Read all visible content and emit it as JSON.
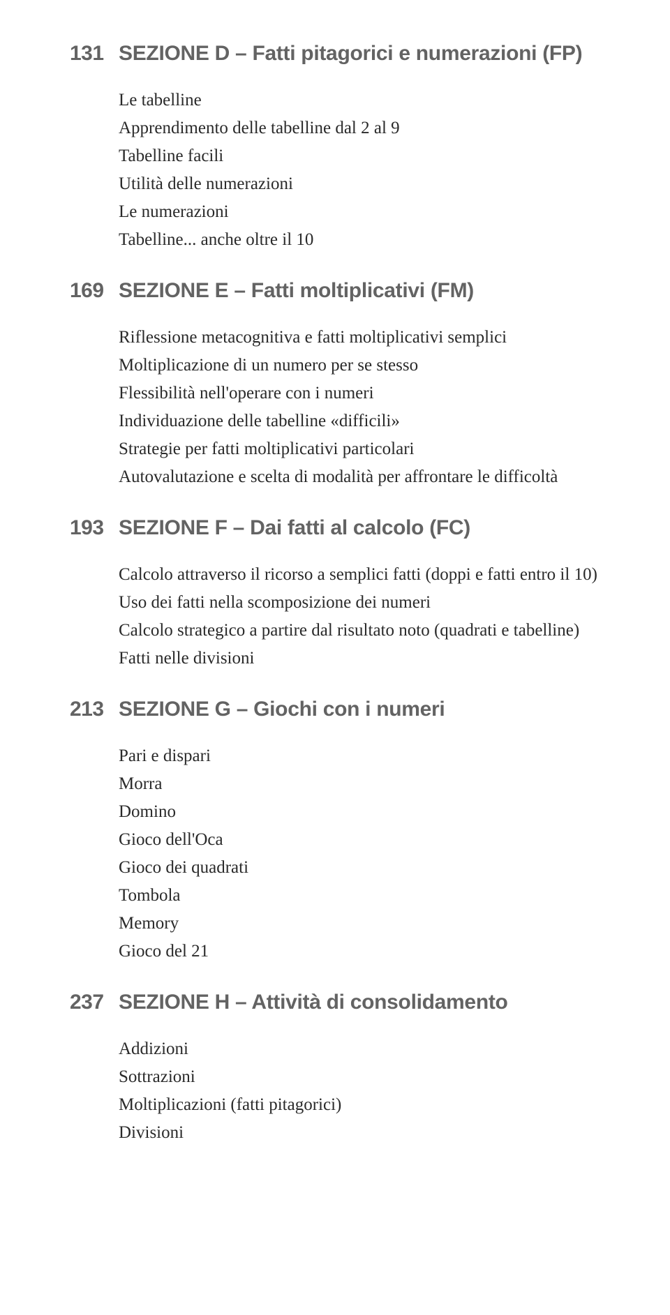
{
  "sections": [
    {
      "page": "131",
      "title": "SEZIONE D – Fatti pitagorici e numerazioni (FP)",
      "items": [
        "Le tabelline",
        "Apprendimento delle tabelline dal 2 al 9",
        "Tabelline facili",
        "Utilità delle numerazioni",
        "Le numerazioni",
        "Tabelline... anche oltre il 10"
      ]
    },
    {
      "page": "169",
      "title": "SEZIONE E – Fatti moltiplicativi (FM)",
      "items": [
        "Riflessione metacognitiva e fatti moltiplicativi semplici",
        "Moltiplicazione di un numero per se stesso",
        "Flessibilità nell'operare con i numeri",
        "Individuazione delle tabelline «difficili»",
        "Strategie per fatti moltiplicativi particolari",
        "Autovalutazione e scelta di modalità per affrontare le difficoltà"
      ]
    },
    {
      "page": "193",
      "title": "SEZIONE F – Dai fatti al calcolo (FC)",
      "items": [
        "Calcolo attraverso il ricorso a semplici fatti (doppi e fatti entro il 10)",
        "Uso dei fatti nella scomposizione dei numeri",
        "Calcolo strategico a partire dal risultato noto (quadrati e tabelline)",
        "Fatti nelle divisioni"
      ]
    },
    {
      "page": "213",
      "title": "SEZIONE G – Giochi con i numeri",
      "items": [
        "Pari e dispari",
        "Morra",
        "Domino",
        "Gioco dell'Oca",
        "Gioco dei quadrati",
        "Tombola",
        "Memory",
        "Gioco del 21"
      ]
    },
    {
      "page": "237",
      "title": "SEZIONE H – Attività di consolidamento",
      "items": [
        "Addizioni",
        "Sottrazioni",
        "Moltiplicazioni (fatti pitagorici)",
        "Divisioni"
      ]
    }
  ]
}
